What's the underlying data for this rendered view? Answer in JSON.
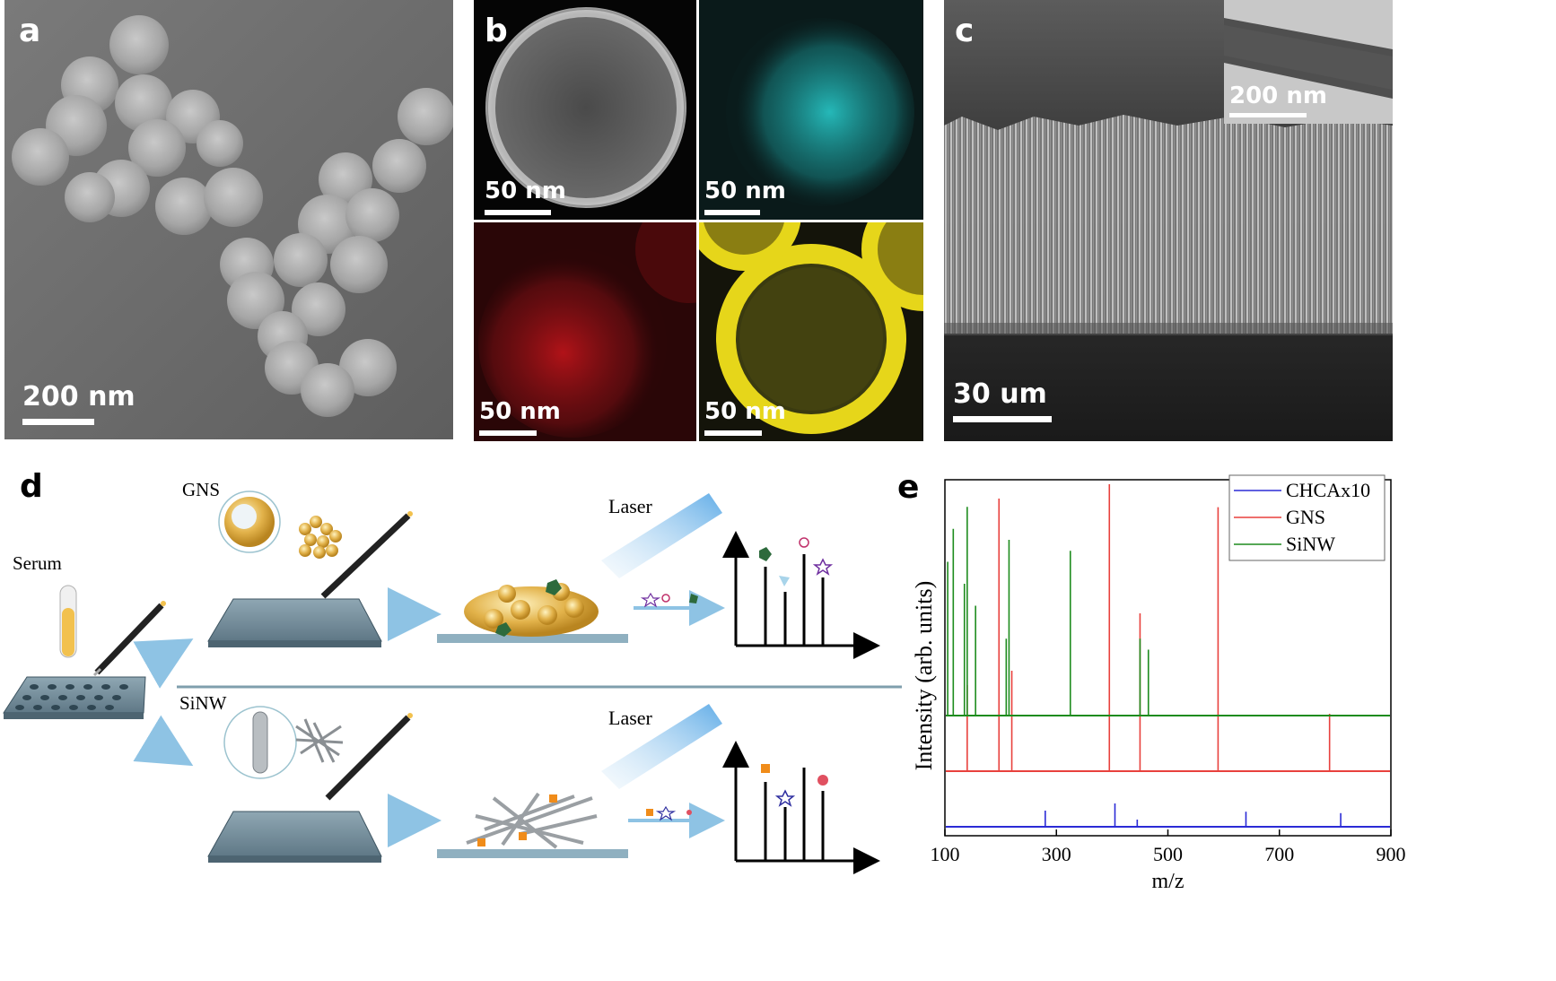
{
  "panels": {
    "a": {
      "label": "a",
      "scale": "200 nm"
    },
    "b": {
      "label": "b",
      "scales": [
        "50 nm",
        "50 nm",
        "50 nm",
        "50 nm"
      ]
    },
    "c": {
      "label": "c",
      "scale": "30 um",
      "inset_scale": "200 nm"
    },
    "d": {
      "label": "d",
      "serum": "Serum",
      "gns": "GNS",
      "sinw": "SiNW",
      "laser_top": "Laser",
      "laser_bottom": "Laser"
    },
    "e": {
      "label": "e"
    }
  },
  "colors": {
    "chca": "#2b2bd6",
    "gns": "#e8413d",
    "sinw": "#1e8c1e",
    "cyan": "#2ad4d4",
    "red": "#c0141a",
    "yellow": "#e6d61a",
    "arrow": "#8ec3e4"
  },
  "chart_data": {
    "type": "line",
    "xlabel": "m/z",
    "ylabel": "Intensity (arb. units)",
    "xlim": [
      100,
      900
    ],
    "xticks": [
      "100",
      "300",
      "500",
      "700",
      "900"
    ],
    "legend_position": "top-right",
    "series": [
      {
        "name": "CHCAx10",
        "peaks_mz": [
          280,
          405,
          445,
          640,
          810
        ],
        "relative_heights": [
          0.45,
          0.65,
          0.2,
          0.42,
          0.38
        ]
      },
      {
        "name": "GNS",
        "peaks_mz": [
          140,
          197,
          220,
          395,
          450,
          590,
          790
        ],
        "relative_heights": [
          0.3,
          0.95,
          0.35,
          1.0,
          0.55,
          0.92,
          0.2
        ]
      },
      {
        "name": "SiNW",
        "peaks_mz": [
          105,
          115,
          135,
          140,
          155,
          210,
          215,
          325,
          450,
          465
        ],
        "relative_heights": [
          0.7,
          0.85,
          0.6,
          0.95,
          0.5,
          0.35,
          0.8,
          0.75,
          0.35,
          0.3
        ]
      }
    ]
  }
}
